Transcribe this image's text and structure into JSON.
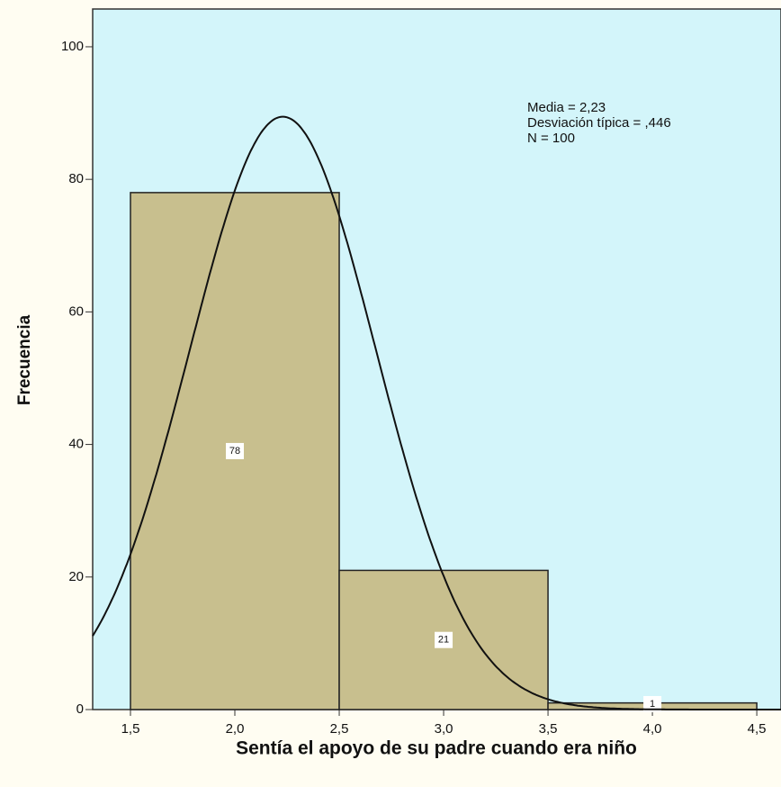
{
  "chart_data": {
    "type": "histogram",
    "x_label": "Sentía el apoyo de su padre cuando era niño",
    "y_label": "Frecuencia",
    "bins": [
      1.5,
      2.5,
      3.5,
      4.5
    ],
    "values": [
      78,
      21,
      1
    ],
    "value_labels": [
      "78",
      "21",
      "1"
    ],
    "color": "#c8bf8e",
    "annotations": [
      "Media = 2,23",
      "Desviación típica = ,446",
      "N = 100"
    ],
    "normal_curve": {
      "mean": 2.23,
      "sd": 0.446,
      "n": 100
    },
    "xlim": [
      1.319,
      4.616
    ],
    "ylim": [
      0,
      105.7
    ],
    "xticks": [
      {
        "value": 1.5,
        "label": "1,5"
      },
      {
        "value": 2.0,
        "label": "2,0"
      },
      {
        "value": 2.5,
        "label": "2,5"
      },
      {
        "value": 3.0,
        "label": "3,0"
      },
      {
        "value": 3.5,
        "label": "3,5"
      },
      {
        "value": 4.0,
        "label": "4,0"
      },
      {
        "value": 4.5,
        "label": "4,5"
      }
    ],
    "yticks": [
      0,
      20,
      40,
      60,
      80,
      100
    ]
  }
}
